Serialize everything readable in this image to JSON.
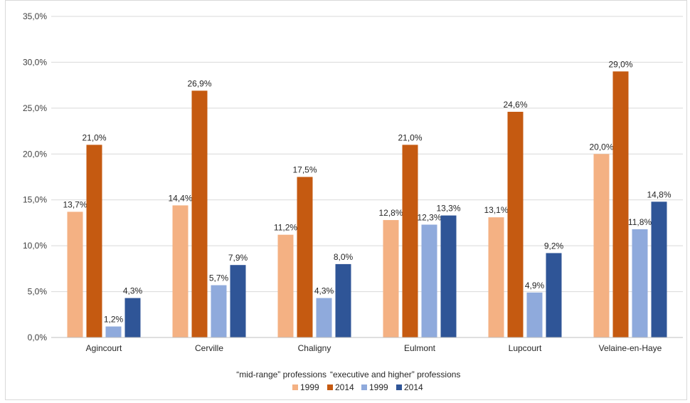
{
  "chart_data": {
    "type": "bar",
    "categories": [
      "Agincourt",
      "Cerville",
      "Chaligny",
      "Eulmont",
      "Lupcourt",
      "Velaine-en-Haye"
    ],
    "series": [
      {
        "name": "1999",
        "group": "mid-range",
        "color": "#f4b183",
        "values": [
          13.7,
          14.4,
          11.2,
          12.8,
          13.1,
          20.0
        ],
        "labels": [
          "13,7%",
          "14,4%",
          "11,2%",
          "12,8%",
          "13,1%",
          "20,0%"
        ]
      },
      {
        "name": "2014",
        "group": "mid-range",
        "color": "#c55a11",
        "values": [
          21.0,
          26.9,
          17.5,
          21.0,
          24.6,
          29.0
        ],
        "labels": [
          "21,0%",
          "26,9%",
          "17,5%",
          "21,0%",
          "24,6%",
          "29,0%"
        ]
      },
      {
        "name": "1999",
        "group": "executive",
        "color": "#8faadc",
        "values": [
          1.2,
          5.7,
          4.3,
          12.3,
          4.9,
          11.8
        ],
        "labels": [
          "1,2%",
          "5,7%",
          "4,3%",
          "12,3%",
          "4,9%",
          "11,8%"
        ]
      },
      {
        "name": "2014",
        "group": "executive",
        "color": "#2f5597",
        "values": [
          4.3,
          7.9,
          8.0,
          13.3,
          9.2,
          14.8
        ],
        "labels": [
          "4,3%",
          "7,9%",
          "8,0%",
          "13,3%",
          "9,2%",
          "14,8%"
        ]
      }
    ],
    "ylim": [
      0,
      35
    ],
    "yticks": [
      0,
      5,
      10,
      15,
      20,
      25,
      30,
      35
    ],
    "ytick_labels": [
      "0,0%",
      "5,0%",
      "10,0%",
      "15,0%",
      "20,0%",
      "25,0%",
      "30,0%",
      "35,0%"
    ],
    "legend": {
      "group_labels": [
        "“mid-range” professions",
        "“executive and higher” professions"
      ],
      "placement": "bottom"
    },
    "grid": true,
    "gridline_color": "#d9d9d9"
  }
}
